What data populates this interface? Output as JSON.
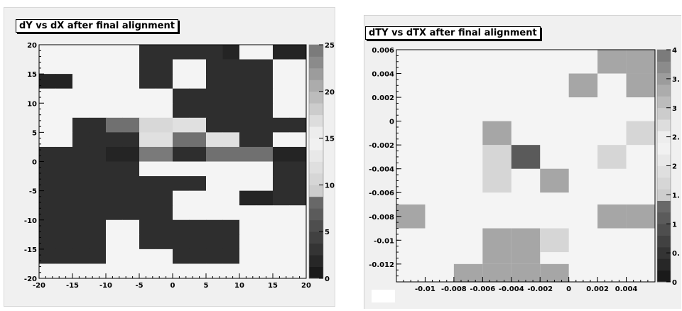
{
  "chart_data": [
    {
      "type": "heatmap",
      "title": "dY vs dX after final alignment",
      "x_edges": [
        -20,
        -15,
        -10,
        -5,
        0,
        5,
        10,
        15,
        20
      ],
      "y_edges": [
        -20,
        -15,
        -10,
        -5,
        0,
        5,
        10,
        15,
        20
      ],
      "x_bins": [
        -20,
        -17.5,
        -15,
        -12.5,
        -10,
        -7.5,
        -5,
        -2.5,
        0,
        2.5,
        5,
        7.5,
        10,
        12.5,
        15,
        17.5,
        20
      ],
      "y_bins": [
        -20,
        -17.5,
        -15,
        -12.5,
        -10,
        -7.5,
        -5,
        -2.5,
        0,
        2.5,
        5,
        7.5,
        10,
        12.5,
        15,
        17.5,
        20
      ],
      "xlim": [
        -20,
        20
      ],
      "ylim": [
        -20,
        20
      ],
      "zlim": [
        0,
        25
      ],
      "x_ticks": [
        -20,
        -15,
        -10,
        -5,
        0,
        5,
        10,
        15,
        20
      ],
      "y_ticks": [
        -20,
        -15,
        -10,
        -5,
        0,
        5,
        10,
        15,
        20
      ],
      "z_ticks": [
        0,
        5,
        10,
        15,
        20,
        25
      ],
      "x_tick_labels": [
        "-20",
        "-15",
        "-10",
        "-5",
        "0",
        "5",
        "10",
        "15",
        "20"
      ],
      "y_tick_labels": [
        "-20",
        "-15",
        "-10",
        "-5",
        "0",
        "5",
        "10",
        "15",
        "20"
      ],
      "z_tick_labels": [
        "0",
        "5",
        "10",
        "15",
        "20",
        "25"
      ],
      "values": [
        [
          0,
          0,
          0,
          0,
          0,
          0,
          3,
          3,
          3,
          3,
          3,
          2,
          0,
          0,
          2,
          2
        ],
        [
          0,
          0,
          0,
          0,
          0,
          0,
          3,
          3,
          0,
          0,
          3,
          3,
          3,
          3,
          0,
          0
        ],
        [
          2,
          2,
          0,
          0,
          0,
          0,
          3,
          3,
          0,
          0,
          3,
          3,
          3,
          3,
          0,
          0
        ],
        [
          0,
          0,
          0,
          0,
          0,
          0,
          0,
          0,
          3,
          3,
          3,
          3,
          3,
          3,
          0,
          0
        ],
        [
          0,
          0,
          0,
          0,
          0,
          0,
          0,
          0,
          3,
          3,
          3,
          3,
          3,
          3,
          0,
          0
        ],
        [
          0,
          0,
          3,
          3,
          6,
          6,
          10,
          10,
          11,
          11,
          3,
          3,
          3,
          3,
          3,
          3
        ],
        [
          0,
          0,
          3,
          3,
          3,
          3,
          11,
          11,
          6,
          6,
          11,
          11,
          3,
          3,
          0,
          0
        ],
        [
          3,
          3,
          3,
          3,
          2,
          2,
          7,
          7,
          3,
          3,
          6,
          6,
          6,
          6,
          2,
          2
        ],
        [
          3,
          3,
          3,
          3,
          3,
          3,
          0,
          0,
          0,
          0,
          0,
          0,
          0,
          0,
          3,
          3
        ],
        [
          3,
          3,
          3,
          3,
          3,
          3,
          3,
          3,
          3,
          3,
          0,
          0,
          0,
          0,
          3,
          3
        ],
        [
          3,
          3,
          3,
          3,
          3,
          3,
          3,
          3,
          0,
          0,
          0,
          0,
          2,
          2,
          3,
          3
        ],
        [
          3,
          3,
          3,
          3,
          3,
          3,
          3,
          3,
          0,
          0,
          0,
          0,
          0,
          0,
          0,
          0
        ],
        [
          3,
          3,
          3,
          3,
          0,
          0,
          3,
          3,
          3,
          3,
          3,
          3,
          0,
          0,
          0,
          0
        ],
        [
          3,
          3,
          3,
          3,
          0,
          0,
          3,
          3,
          3,
          3,
          3,
          3,
          0,
          0,
          0,
          0
        ],
        [
          3,
          3,
          3,
          3,
          0,
          0,
          0,
          0,
          3,
          3,
          3,
          3,
          0,
          0,
          0,
          0
        ],
        [
          0,
          0,
          0,
          0,
          0,
          0,
          0,
          0,
          0,
          0,
          0,
          0,
          0,
          0,
          0,
          0
        ]
      ]
    },
    {
      "type": "heatmap",
      "title": "dTY vs dTX after final alignment",
      "x_bins": [
        -0.012,
        -0.011,
        -0.01,
        -0.009,
        -0.008,
        -0.007,
        -0.006,
        -0.005,
        -0.004,
        -0.003,
        -0.002,
        -0.001,
        0,
        0.001,
        0.002,
        0.003,
        0.004,
        0.005,
        0.006
      ],
      "y_bins": [
        -0.013,
        -0.012,
        -0.011,
        -0.01,
        -0.009,
        -0.008,
        -0.007,
        -0.006,
        -0.005,
        -0.004,
        -0.003,
        -0.002,
        -0.001,
        0,
        0.001,
        0.002,
        0.003,
        0.004,
        0.005,
        0.006
      ],
      "xlim": [
        -0.012,
        0.006
      ],
      "ylim": [
        -0.0135,
        0.006
      ],
      "zlim": [
        0,
        4
      ],
      "x_ticks": [
        -0.01,
        -0.008,
        -0.006,
        -0.004,
        -0.002,
        0,
        0.002,
        0.004
      ],
      "y_ticks": [
        -0.012,
        -0.01,
        -0.008,
        -0.006,
        -0.004,
        -0.002,
        0,
        0.002,
        0.004,
        0.006
      ],
      "z_ticks": [
        0,
        0.5,
        1,
        1.5,
        2,
        2.5,
        3,
        3.5,
        4
      ],
      "x_tick_labels": [
        "-0.01",
        "-0.008",
        "-0.006",
        "-0.004",
        "-0.002",
        "0",
        "0.002",
        "0.004"
      ],
      "y_tick_labels": [
        "-0.012",
        "-0.01",
        "-0.008",
        "-0.006",
        "-0.004",
        "-0.002",
        "0",
        "0.002",
        "0.004",
        "0.006"
      ],
      "z_tick_labels": [
        "0",
        "0.",
        "1",
        "1.",
        "2",
        "2.",
        "3",
        "3.",
        "4"
      ],
      "cells": [
        {
          "x0": -0.008,
          "x1": -0.006,
          "y0": -0.0135,
          "y1": -0.012,
          "z": 1
        },
        {
          "x0": -0.006,
          "x1": -0.004,
          "y0": -0.0135,
          "y1": -0.012,
          "z": 1
        },
        {
          "x0": -0.004,
          "x1": -0.002,
          "y0": -0.0135,
          "y1": -0.012,
          "z": 1
        },
        {
          "x0": -0.002,
          "x1": 0.0,
          "y0": -0.0135,
          "y1": -0.012,
          "z": 1
        },
        {
          "x0": -0.006,
          "x1": -0.004,
          "y0": -0.012,
          "y1": -0.009,
          "z": 1
        },
        {
          "x0": -0.004,
          "x1": -0.002,
          "y0": -0.012,
          "y1": -0.009,
          "z": 1
        },
        {
          "x0": -0.002,
          "x1": 0.0,
          "y0": -0.011,
          "y1": -0.009,
          "z": 2
        },
        {
          "x0": -0.012,
          "x1": -0.01,
          "y0": -0.009,
          "y1": -0.007,
          "z": 1
        },
        {
          "x0": 0.002,
          "x1": 0.004,
          "y0": -0.009,
          "y1": -0.007,
          "z": 1
        },
        {
          "x0": 0.004,
          "x1": 0.006,
          "y0": -0.009,
          "y1": -0.007,
          "z": 1
        },
        {
          "x0": -0.006,
          "x1": -0.004,
          "y0": -0.006,
          "y1": -0.002,
          "z": 2
        },
        {
          "x0": -0.004,
          "x1": -0.002,
          "y0": -0.004,
          "y1": -0.002,
          "z": 3
        },
        {
          "x0": -0.002,
          "x1": 0.0,
          "y0": -0.006,
          "y1": -0.004,
          "z": 1
        },
        {
          "x0": 0.002,
          "x1": 0.004,
          "y0": -0.004,
          "y1": -0.002,
          "z": 2
        },
        {
          "x0": -0.006,
          "x1": -0.004,
          "y0": -0.002,
          "y1": 0.0,
          "z": 1
        },
        {
          "x0": 0.004,
          "x1": 0.006,
          "y0": -0.002,
          "y1": 0.0,
          "z": 2
        },
        {
          "x0": 0.0,
          "x1": 0.002,
          "y0": 0.002,
          "y1": 0.004,
          "z": 1
        },
        {
          "x0": 0.004,
          "x1": 0.006,
          "y0": 0.002,
          "y1": 0.004,
          "z": 1
        },
        {
          "x0": 0.002,
          "x1": 0.004,
          "y0": 0.004,
          "y1": 0.006,
          "z": 1
        },
        {
          "x0": 0.004,
          "x1": 0.006,
          "y0": 0.004,
          "y1": 0.006,
          "z": 1
        }
      ]
    }
  ]
}
